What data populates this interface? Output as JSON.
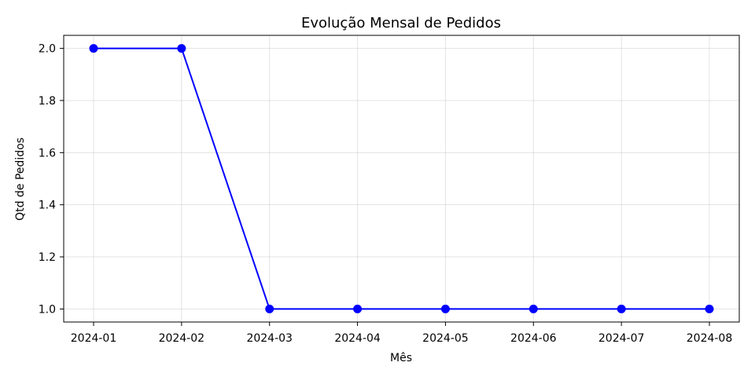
{
  "chart_data": {
    "type": "line",
    "title": "Evolução Mensal de Pedidos",
    "xlabel": "Mês",
    "ylabel": "Qtd de Pedidos",
    "x": [
      "2024-01",
      "2024-02",
      "2024-03",
      "2024-04",
      "2024-05",
      "2024-06",
      "2024-07",
      "2024-08"
    ],
    "series": [
      {
        "values": [
          2,
          2,
          1,
          1,
          1,
          1,
          1,
          1
        ],
        "color": "#0000ff"
      }
    ],
    "ylim": [
      0.95,
      2.05
    ],
    "yticks": [
      "1.0",
      "1.2",
      "1.4",
      "1.6",
      "1.8",
      "2.0"
    ],
    "grid": true,
    "legend": "none"
  }
}
